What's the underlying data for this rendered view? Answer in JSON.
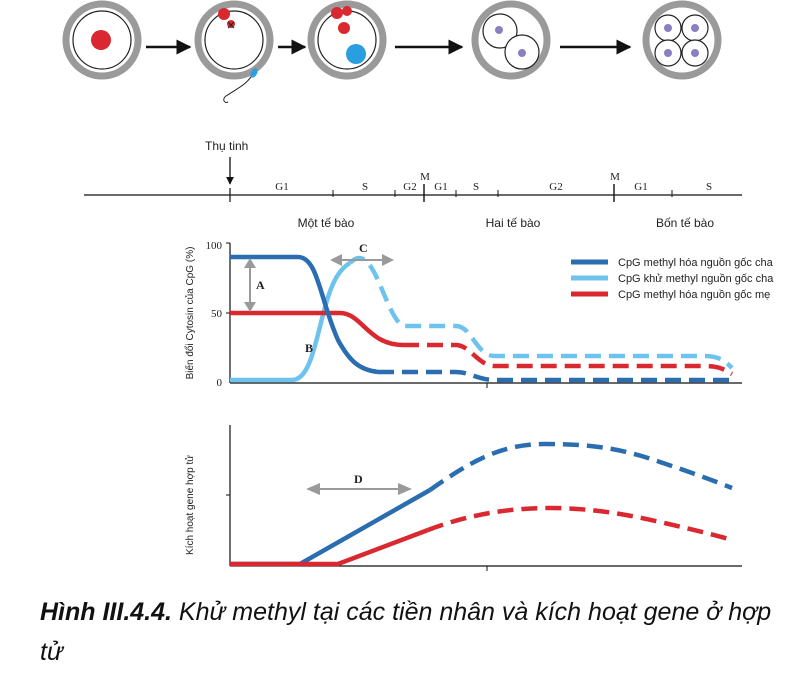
{
  "timeline": {
    "fertilization_label": "Thụ tinh",
    "phases": [
      {
        "key": "g1a",
        "label": "G1"
      },
      {
        "key": "s1",
        "label": "S"
      },
      {
        "key": "g2a",
        "label": "G2"
      },
      {
        "key": "m1",
        "label": "M"
      },
      {
        "key": "g1b",
        "label": "G1"
      },
      {
        "key": "s2",
        "label": "S"
      },
      {
        "key": "g2b",
        "label": "G2"
      },
      {
        "key": "m2",
        "label": "M"
      },
      {
        "key": "g1c",
        "label": "G1"
      },
      {
        "key": "s3",
        "label": "S"
      }
    ],
    "stages": [
      "Một tế bào",
      "Hai tế bào",
      "Bốn tế bào"
    ]
  },
  "top_chart": {
    "ylabel": "Biến đổi Cytosin của CpG (%)",
    "y_ticks": [
      "100",
      "50",
      "0"
    ],
    "letters": {
      "a": "A",
      "b": "B",
      "c": "C"
    },
    "legend": [
      {
        "label": "CpG methyl hóa nguồn gốc cha",
        "color": "#2a6db0"
      },
      {
        "label": "CpG khử methyl nguồn gốc cha",
        "color": "#6ec3ee"
      },
      {
        "label": "CpG methyl hóa nguồn gốc mẹ",
        "color": "#d9282f"
      }
    ]
  },
  "bottom_chart": {
    "ylabel": "Kích hoạt gene hợp tử",
    "letters": {
      "d": "D"
    }
  },
  "colors": {
    "dark_blue": "#2a6db0",
    "light_blue": "#6ec3ee",
    "red": "#d9282f",
    "arrow_gray": "#9a9a9a",
    "nucleus_purple": "#8a7fc0"
  },
  "caption": {
    "bold": "Hình III.4.4.",
    "text": " Khử methyl tại các tiền nhân và kích hoạt gene ở hợp tử"
  }
}
